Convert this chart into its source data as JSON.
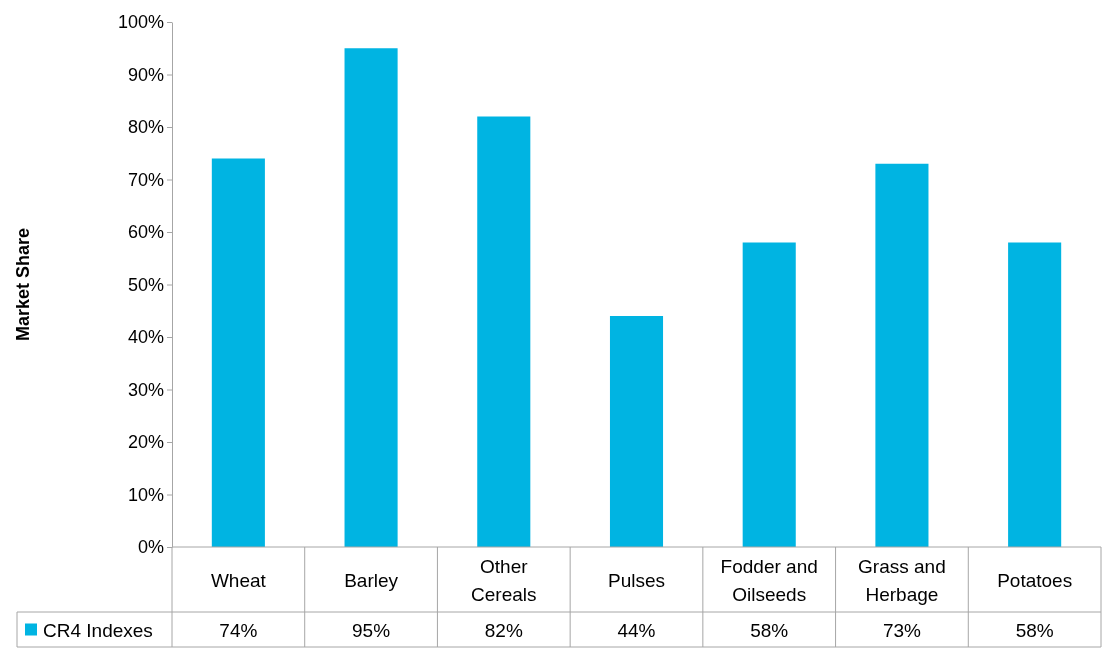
{
  "chart_data": {
    "type": "bar",
    "ylabel": "Market Share",
    "categories": [
      "Wheat",
      "Barley",
      "Other Cereals",
      "Pulses",
      "Fodder and Oilseeds",
      "Grass and Herbage",
      "Potatoes"
    ],
    "series": [
      {
        "name": "CR4 Indexes",
        "color": "#00b4e2",
        "values": [
          74,
          95,
          82,
          44,
          58,
          73,
          58
        ],
        "value_labels": [
          "74%",
          "95%",
          "82%",
          "44%",
          "58%",
          "73%",
          "58%"
        ]
      }
    ],
    "ylim": [
      0,
      100
    ],
    "yticks": [
      {
        "value": 0,
        "label": "0%"
      },
      {
        "value": 10,
        "label": "10%"
      },
      {
        "value": 20,
        "label": "20%"
      },
      {
        "value": 30,
        "label": "30%"
      },
      {
        "value": 40,
        "label": "40%"
      },
      {
        "value": 50,
        "label": "50%"
      },
      {
        "value": 60,
        "label": "60%"
      },
      {
        "value": 70,
        "label": "70%"
      },
      {
        "value": 80,
        "label": "80%"
      },
      {
        "value": 90,
        "label": "90%"
      },
      {
        "value": 100,
        "label": "100%"
      }
    ],
    "grid": false,
    "legend": "bottom left"
  }
}
